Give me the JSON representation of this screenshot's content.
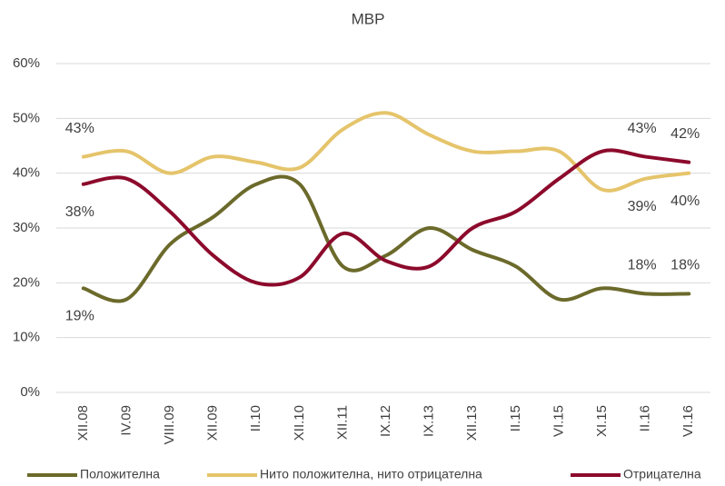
{
  "chart_data": {
    "type": "line",
    "title": "МВР",
    "categories": [
      "XII.08",
      "IV.09",
      "VIII.09",
      "XII.09",
      "II.10",
      "XII.10",
      "XII.11",
      "IX.12",
      "IX.13",
      "XII.13",
      "II.15",
      "VI.15",
      "XI.15",
      "II.16",
      "VI.16"
    ],
    "series": [
      {
        "name": "Положителна",
        "color": "#6b6a2b",
        "values": [
          19,
          17,
          27,
          32,
          38,
          38,
          23,
          25,
          30,
          26,
          23,
          17,
          19,
          18,
          18
        ],
        "value_labels": [
          "19%",
          null,
          null,
          null,
          null,
          null,
          null,
          null,
          null,
          null,
          null,
          null,
          null,
          "18%",
          "18%"
        ]
      },
      {
        "name": "Нито положителна, нито отрицателна",
        "color": "#e5c46b",
        "values": [
          43,
          44,
          40,
          43,
          42,
          41,
          48,
          51,
          47,
          44,
          44,
          44,
          37,
          39,
          40
        ],
        "value_labels": [
          "43%",
          null,
          null,
          null,
          null,
          null,
          null,
          null,
          null,
          null,
          null,
          null,
          null,
          "39%",
          "40%"
        ]
      },
      {
        "name": "Отрицателна",
        "color": "#8c0a2c",
        "values": [
          38,
          39,
          33,
          25,
          20,
          21,
          29,
          24,
          23,
          30,
          33,
          39,
          44,
          43,
          42
        ],
        "value_labels": [
          "38%",
          null,
          null,
          null,
          null,
          null,
          null,
          null,
          null,
          null,
          null,
          null,
          null,
          "43%",
          "42%"
        ]
      }
    ],
    "ylim": [
      0,
      60
    ],
    "yticks": [
      {
        "value": 0,
        "label": "0%"
      },
      {
        "value": 10,
        "label": "10%"
      },
      {
        "value": 20,
        "label": "20%"
      },
      {
        "value": 30,
        "label": "30%"
      },
      {
        "value": 40,
        "label": "40%"
      },
      {
        "value": 50,
        "label": "50%"
      },
      {
        "value": 60,
        "label": "60%"
      }
    ],
    "grid": true,
    "legend": "bottom"
  }
}
